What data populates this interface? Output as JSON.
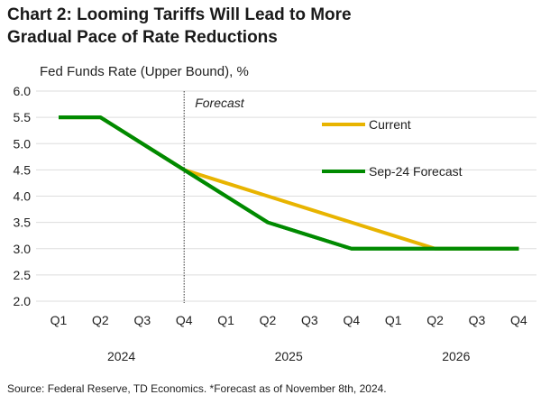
{
  "title_line1": "Chart 2: Looming Tariffs Will Lead to More",
  "title_line2": "Gradual Pace of Rate Reductions",
  "source": "Source: Federal Reserve, TD Economics.  *Forecast as of November 8th, 2024.",
  "chart_data": {
    "type": "line",
    "title": "Chart 2: Looming Tariffs Will Lead to More Gradual Pace of Rate Reductions",
    "ylabel": "Fed Funds Rate (Upper Bound), %",
    "ylim": [
      2.0,
      6.0
    ],
    "yticks": [
      "2.0",
      "2.5",
      "3.0",
      "3.5",
      "4.0",
      "4.5",
      "5.0",
      "5.5",
      "6.0"
    ],
    "categories": [
      "Q1",
      "Q2",
      "Q3",
      "Q4",
      "Q1",
      "Q2",
      "Q3",
      "Q4",
      "Q1",
      "Q2",
      "Q3",
      "Q4"
    ],
    "years": [
      "2024",
      "2025",
      "2026"
    ],
    "annotation": "Forecast",
    "forecast_start_index": 3,
    "grid": true,
    "legend_placement": "top-right",
    "series": [
      {
        "name": "Current",
        "color": "#E8B400",
        "values": [
          5.5,
          5.5,
          5.0,
          4.5,
          4.25,
          4.0,
          3.75,
          3.5,
          3.25,
          3.0,
          3.0,
          3.0
        ]
      },
      {
        "name": "Sep-24 Forecast",
        "color": "#008A00",
        "values": [
          5.5,
          5.5,
          5.0,
          4.5,
          4.0,
          3.5,
          3.25,
          3.0,
          3.0,
          3.0,
          3.0,
          3.0
        ]
      }
    ]
  }
}
